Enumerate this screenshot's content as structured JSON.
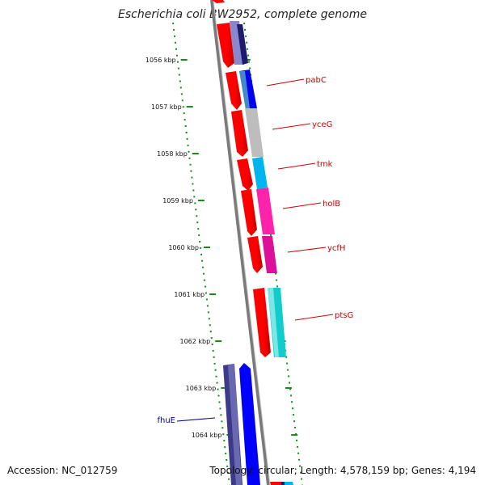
{
  "title": "Escherichia coli BW2952, complete genome",
  "footer": {
    "accession": "Accession: NC_012759",
    "stats": "Topology: circular; Length: 4,578,159 bp; Genes: 4,194"
  },
  "ruler": {
    "labels": [
      "1056 kbp",
      "1057 kbp",
      "1058 kbp",
      "1059 kbp",
      "1060 kbp",
      "1061 kbp",
      "1062 kbp",
      "1063 kbp",
      "1064 kbp"
    ],
    "color": "#1a8a1a"
  },
  "genes": [
    {
      "label": "pabC",
      "color": "#0000ee",
      "strand": "plus",
      "label_color": "#cc0000"
    },
    {
      "label": "yceG",
      "color": "#bdbdbd",
      "strand": "plus",
      "label_color": "#cc0000"
    },
    {
      "label": "tmk",
      "color": "#00b4ee",
      "strand": "plus",
      "label_color": "#cc0000"
    },
    {
      "label": "holB",
      "color": "#ff22aa",
      "strand": "plus",
      "label_color": "#cc0000"
    },
    {
      "label": "ycfH",
      "color": "#dd1199",
      "strand": "plus",
      "label_color": "#cc0000"
    },
    {
      "label": "ptsG",
      "color": "#11cccc",
      "strand": "plus",
      "label_color": "#cc0000"
    },
    {
      "label": "fhuE",
      "color": "#3d3a8a",
      "strand": "minus",
      "label_color": "#000099"
    }
  ],
  "colors": {
    "cds": "#ff0000",
    "backbone": "#888888",
    "navy_gene": "#1e1a6e",
    "blue_gene": "#0000ff",
    "lavender_gene": "#8a88cc"
  }
}
